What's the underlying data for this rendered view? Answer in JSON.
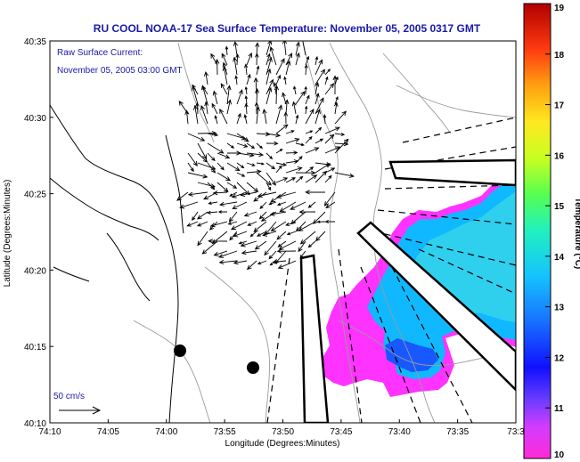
{
  "title": "RU COOL  NOAA-17  Sea Surface Temperature:  November 05, 2005 0317 GMT",
  "annotation": {
    "line1": "Raw Surface Current:",
    "line2": "November 05, 2005 03:00 GMT"
  },
  "scale": {
    "label": "50 cm/s"
  },
  "axes": {
    "xlabel": "Longitude (Degrees:Minutes)",
    "ylabel": "Latitude (Degrees:Minutes)",
    "xticks": [
      "74:10",
      "74:05",
      "74:00",
      "73:55",
      "73:50",
      "73:45",
      "73:40",
      "73:35",
      "73:3"
    ],
    "yticks": [
      "40:35",
      "40:30",
      "40:25",
      "40:20",
      "40:15",
      "40:10"
    ]
  },
  "colorbar": {
    "label": "Temperature (°C)",
    "ticks": [
      "19",
      "18",
      "17",
      "16",
      "15",
      "14",
      "13",
      "12",
      "11",
      "10"
    ],
    "min": 10,
    "max": 19
  },
  "colors": {
    "title": "#1a1aa8",
    "land_outline": "#000000",
    "bathymetry": "#9a9a9a",
    "sst_warm_patch": "#ff33ff",
    "sst_cool": "#00c8ff"
  }
}
